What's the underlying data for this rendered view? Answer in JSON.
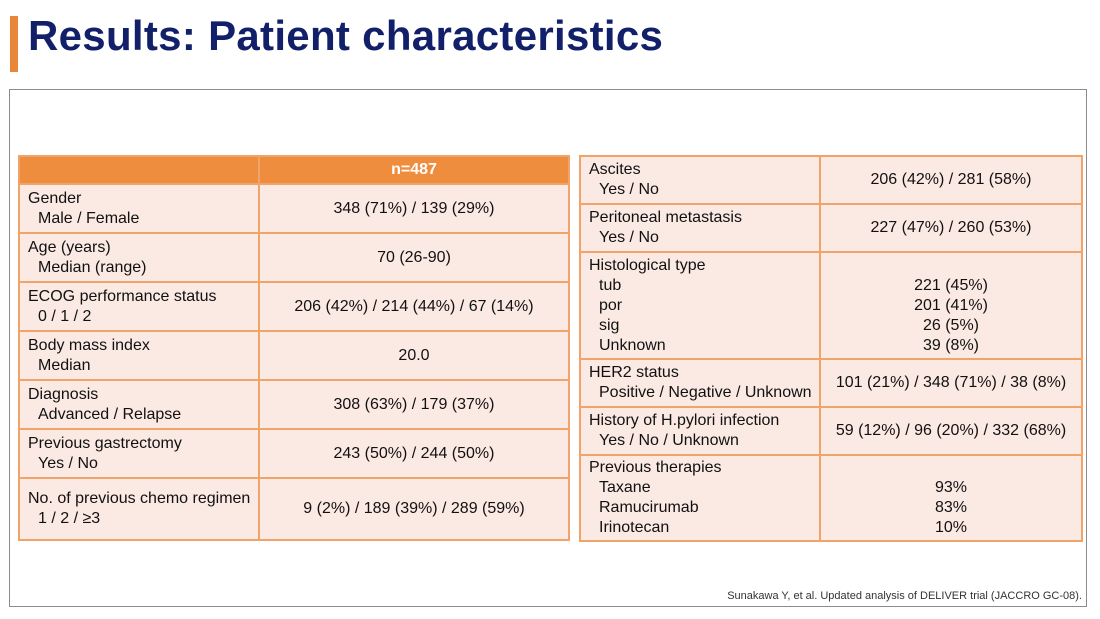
{
  "title": "Results: Patient characteristics",
  "header": {
    "n_label": "n=487"
  },
  "left_rows": [
    {
      "label": "Gender",
      "sub": [
        "Male / Female"
      ],
      "values": [
        "348 (71%) / 139 (29%)"
      ]
    },
    {
      "label": "Age (years)",
      "sub": [
        "Median (range)"
      ],
      "values": [
        "70 (26-90)"
      ]
    },
    {
      "label": "ECOG performance status",
      "sub": [
        "0 / 1 / 2"
      ],
      "values": [
        "206 (42%) / 214 (44%) / 67 (14%)"
      ]
    },
    {
      "label": "Body mass index",
      "sub": [
        "Median"
      ],
      "values": [
        "20.0"
      ]
    },
    {
      "label": "Diagnosis",
      "sub": [
        "Advanced / Relapse"
      ],
      "values": [
        "308 (63%) / 179 (37%)"
      ]
    },
    {
      "label": "Previous gastrectomy",
      "sub": [
        "Yes / No"
      ],
      "values": [
        "243 (50%) / 244 (50%)"
      ]
    },
    {
      "label": "No. of previous chemo regimen",
      "sub": [
        "1 / 2 / ≥3"
      ],
      "values": [
        "9 (2%) / 189 (39%) / 289 (59%)"
      ]
    }
  ],
  "right_rows": [
    {
      "label": "Ascites",
      "sub": [
        "Yes / No"
      ],
      "values": [
        "206 (42%) / 281 (58%)"
      ]
    },
    {
      "label": "Peritoneal metastasis",
      "sub": [
        "Yes / No"
      ],
      "values": [
        "227 (47%) / 260 (53%)"
      ]
    },
    {
      "label": "Histological type",
      "sub": [
        "tub",
        "por",
        "sig",
        "Unknown"
      ],
      "values": [
        "221 (45%)",
        "201 (41%)",
        "26 (5%)",
        "39 (8%)"
      ]
    },
    {
      "label": "HER2 status",
      "sub": [
        "Positive / Negative / Unknown"
      ],
      "values": [
        "101 (21%) /  348 (71%) / 38 (8%)"
      ]
    },
    {
      "label": "History of H.pylori infection",
      "sub": [
        "Yes / No / Unknown"
      ],
      "values": [
        "59 (12%) / 96 (20%) / 332 (68%)"
      ]
    },
    {
      "label": "Previous therapies",
      "sub": [
        "Taxane",
        "Ramucirumab",
        "Irinotecan"
      ],
      "values": [
        "93%",
        "83%",
        "10%"
      ]
    }
  ],
  "citation": "Sunakawa Y, et al. Updated analysis of DELIVER trial (JACCRO GC-08)."
}
